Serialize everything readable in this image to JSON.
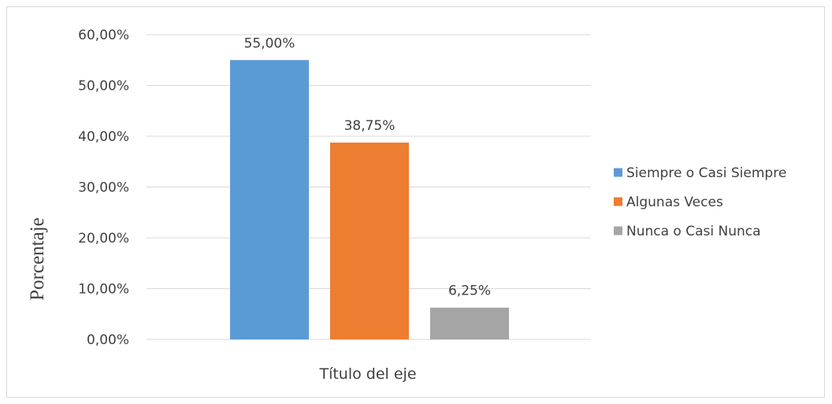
{
  "chart_data": {
    "type": "bar",
    "title": "",
    "xlabel": "Título del eje",
    "ylabel": "Porcentaje",
    "ylim": [
      0,
      60
    ],
    "y_ticks": [
      "0,00%",
      "10,00%",
      "20,00%",
      "30,00%",
      "40,00%",
      "50,00%",
      "60,00%"
    ],
    "y_tick_values": [
      0,
      10,
      20,
      30,
      40,
      50,
      60
    ],
    "grid": true,
    "legend_position": "right",
    "series": [
      {
        "name": "Siempre o Casi Siempre",
        "values": [
          55.0
        ],
        "label": "55,00%",
        "color": "#5b9bd5"
      },
      {
        "name": "Algunas Veces",
        "values": [
          38.75
        ],
        "label": "38,75%",
        "color": "#ed7d31"
      },
      {
        "name": "Nunca o Casi Nunca",
        "values": [
          6.25
        ],
        "label": "6,25%",
        "color": "#a5a5a5"
      }
    ]
  },
  "colors": {
    "grid": "#d9d9d9",
    "text": "#404040"
  }
}
